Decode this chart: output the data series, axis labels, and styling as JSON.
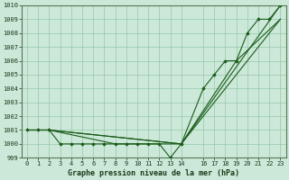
{
  "title": "Graphe pression niveau de la mer (hPa)",
  "background_color": "#cce8d8",
  "grid_color": "#88c0a0",
  "line_color": "#1a5c1a",
  "ylim": [
    999,
    1010
  ],
  "xlim": [
    -0.5,
    23.5
  ],
  "yticks": [
    999,
    1000,
    1001,
    1002,
    1003,
    1004,
    1005,
    1006,
    1007,
    1008,
    1009,
    1010
  ],
  "xticks": [
    0,
    1,
    2,
    3,
    4,
    5,
    6,
    7,
    8,
    9,
    10,
    11,
    12,
    13,
    14,
    16,
    17,
    18,
    19,
    20,
    21,
    22,
    23
  ],
  "series": [
    {
      "x": [
        0,
        1,
        2,
        3,
        4,
        5,
        6,
        7,
        8,
        9,
        10,
        11,
        12,
        13,
        14,
        16,
        17,
        18,
        19,
        20,
        21,
        22,
        23
      ],
      "y": [
        1001,
        1001,
        1001,
        1000,
        1000,
        1000,
        1000,
        1000,
        1000,
        1000,
        1000,
        1000,
        1000,
        999,
        1000,
        1004,
        1005,
        1006,
        1006,
        1008,
        1009,
        1009,
        1010
      ],
      "marker": "D",
      "markersize": 1.8,
      "linewidth": 0.8
    },
    {
      "x": [
        0,
        2,
        14,
        23
      ],
      "y": [
        1001,
        1001,
        1000,
        1010
      ],
      "marker": null,
      "linewidth": 0.8
    },
    {
      "x": [
        0,
        2,
        14,
        23
      ],
      "y": [
        1001,
        1001,
        1000,
        1009
      ],
      "marker": null,
      "linewidth": 0.8
    },
    {
      "x": [
        0,
        2,
        8,
        14,
        19,
        23
      ],
      "y": [
        1001,
        1001,
        1000,
        1000,
        1006,
        1009
      ],
      "marker": null,
      "linewidth": 0.8
    }
  ]
}
